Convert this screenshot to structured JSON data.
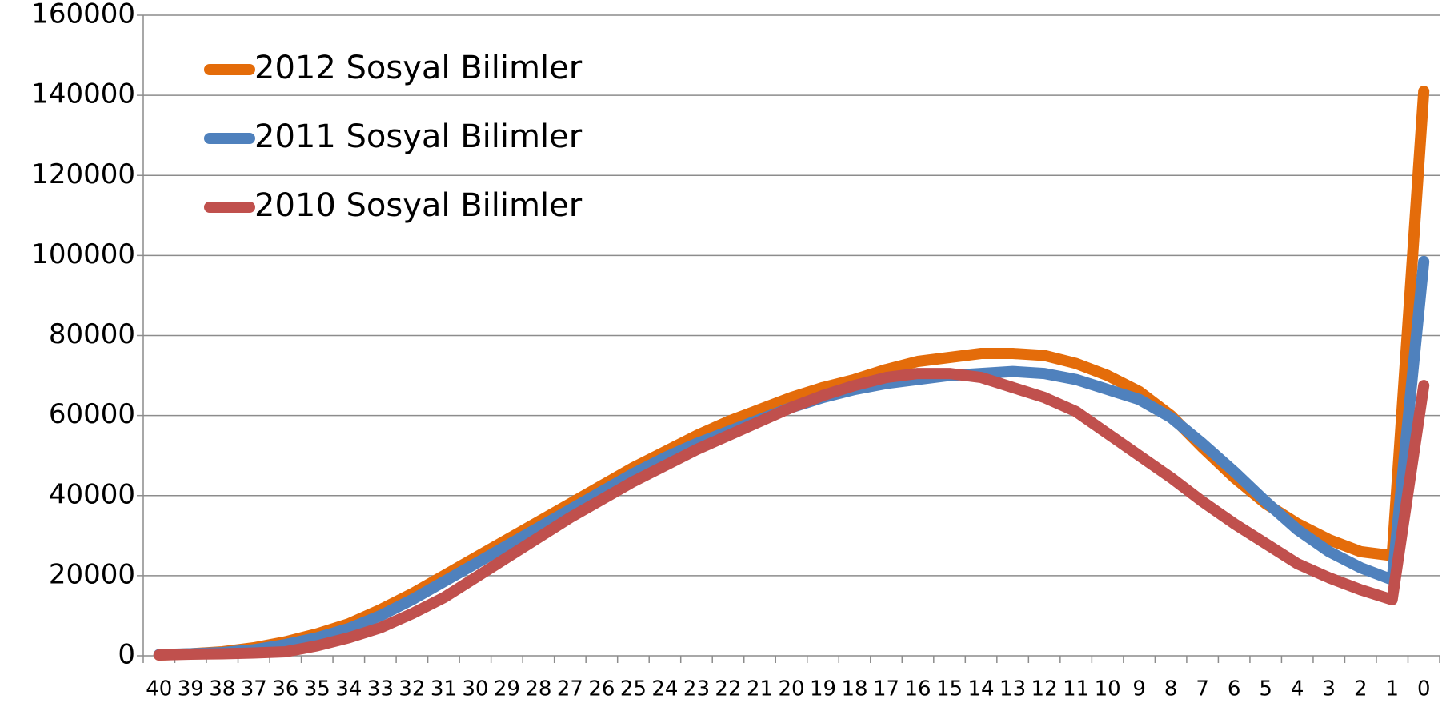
{
  "chart_data": {
    "type": "line",
    "categories": [
      "40",
      "39",
      "38",
      "37",
      "36",
      "35",
      "34",
      "33",
      "32",
      "31",
      "30",
      "29",
      "28",
      "27",
      "26",
      "25",
      "24",
      "23",
      "22",
      "21",
      "20",
      "19",
      "18",
      "17",
      "16",
      "15",
      "14",
      "13",
      "12",
      "11",
      "10",
      "9",
      "8",
      "7",
      "6",
      "5",
      "4",
      "3",
      "2",
      "1",
      "0"
    ],
    "series": [
      {
        "name": "2012 Sosyal Bilimler",
        "color": "#e46c0a",
        "values": [
          200,
          500,
          1000,
          2000,
          3500,
          5500,
          8000,
          11500,
          15500,
          20000,
          24500,
          29000,
          33500,
          38000,
          42500,
          47000,
          51000,
          55000,
          58500,
          61500,
          64500,
          67000,
          69000,
          71500,
          73500,
          74500,
          75500,
          75500,
          75000,
          73000,
          70000,
          66000,
          60000,
          52000,
          44500,
          38000,
          33000,
          29000,
          26000,
          25000,
          141000
        ]
      },
      {
        "name": "2011 Sosyal Bilimler",
        "color": "#4f81bd",
        "values": [
          300,
          500,
          800,
          1500,
          2800,
          4500,
          6800,
          10000,
          14000,
          18500,
          23000,
          27500,
          32000,
          36500,
          41000,
          45500,
          49500,
          53000,
          56000,
          59000,
          62000,
          64500,
          66500,
          68000,
          69000,
          70000,
          70500,
          71000,
          70500,
          69000,
          66500,
          64000,
          59500,
          53000,
          46000,
          38500,
          31500,
          26000,
          22000,
          19000,
          98500
        ]
      },
      {
        "name": "2010 Sosyal Bilimler",
        "color": "#c0504d",
        "values": [
          200,
          400,
          500,
          700,
          1000,
          2500,
          4500,
          7000,
          10500,
          14500,
          19500,
          24500,
          29500,
          34500,
          39000,
          43500,
          47500,
          51500,
          55000,
          58500,
          62000,
          65000,
          67500,
          69500,
          70500,
          70500,
          69500,
          67000,
          64500,
          61000,
          55500,
          50000,
          44500,
          38500,
          33000,
          28000,
          23000,
          19500,
          16500,
          14000,
          67500
        ]
      }
    ],
    "ylim": [
      0,
      160000
    ],
    "yticks": [
      0,
      20000,
      40000,
      60000,
      80000,
      100000,
      120000,
      140000,
      160000
    ],
    "grid": true,
    "legend": "upper left"
  }
}
